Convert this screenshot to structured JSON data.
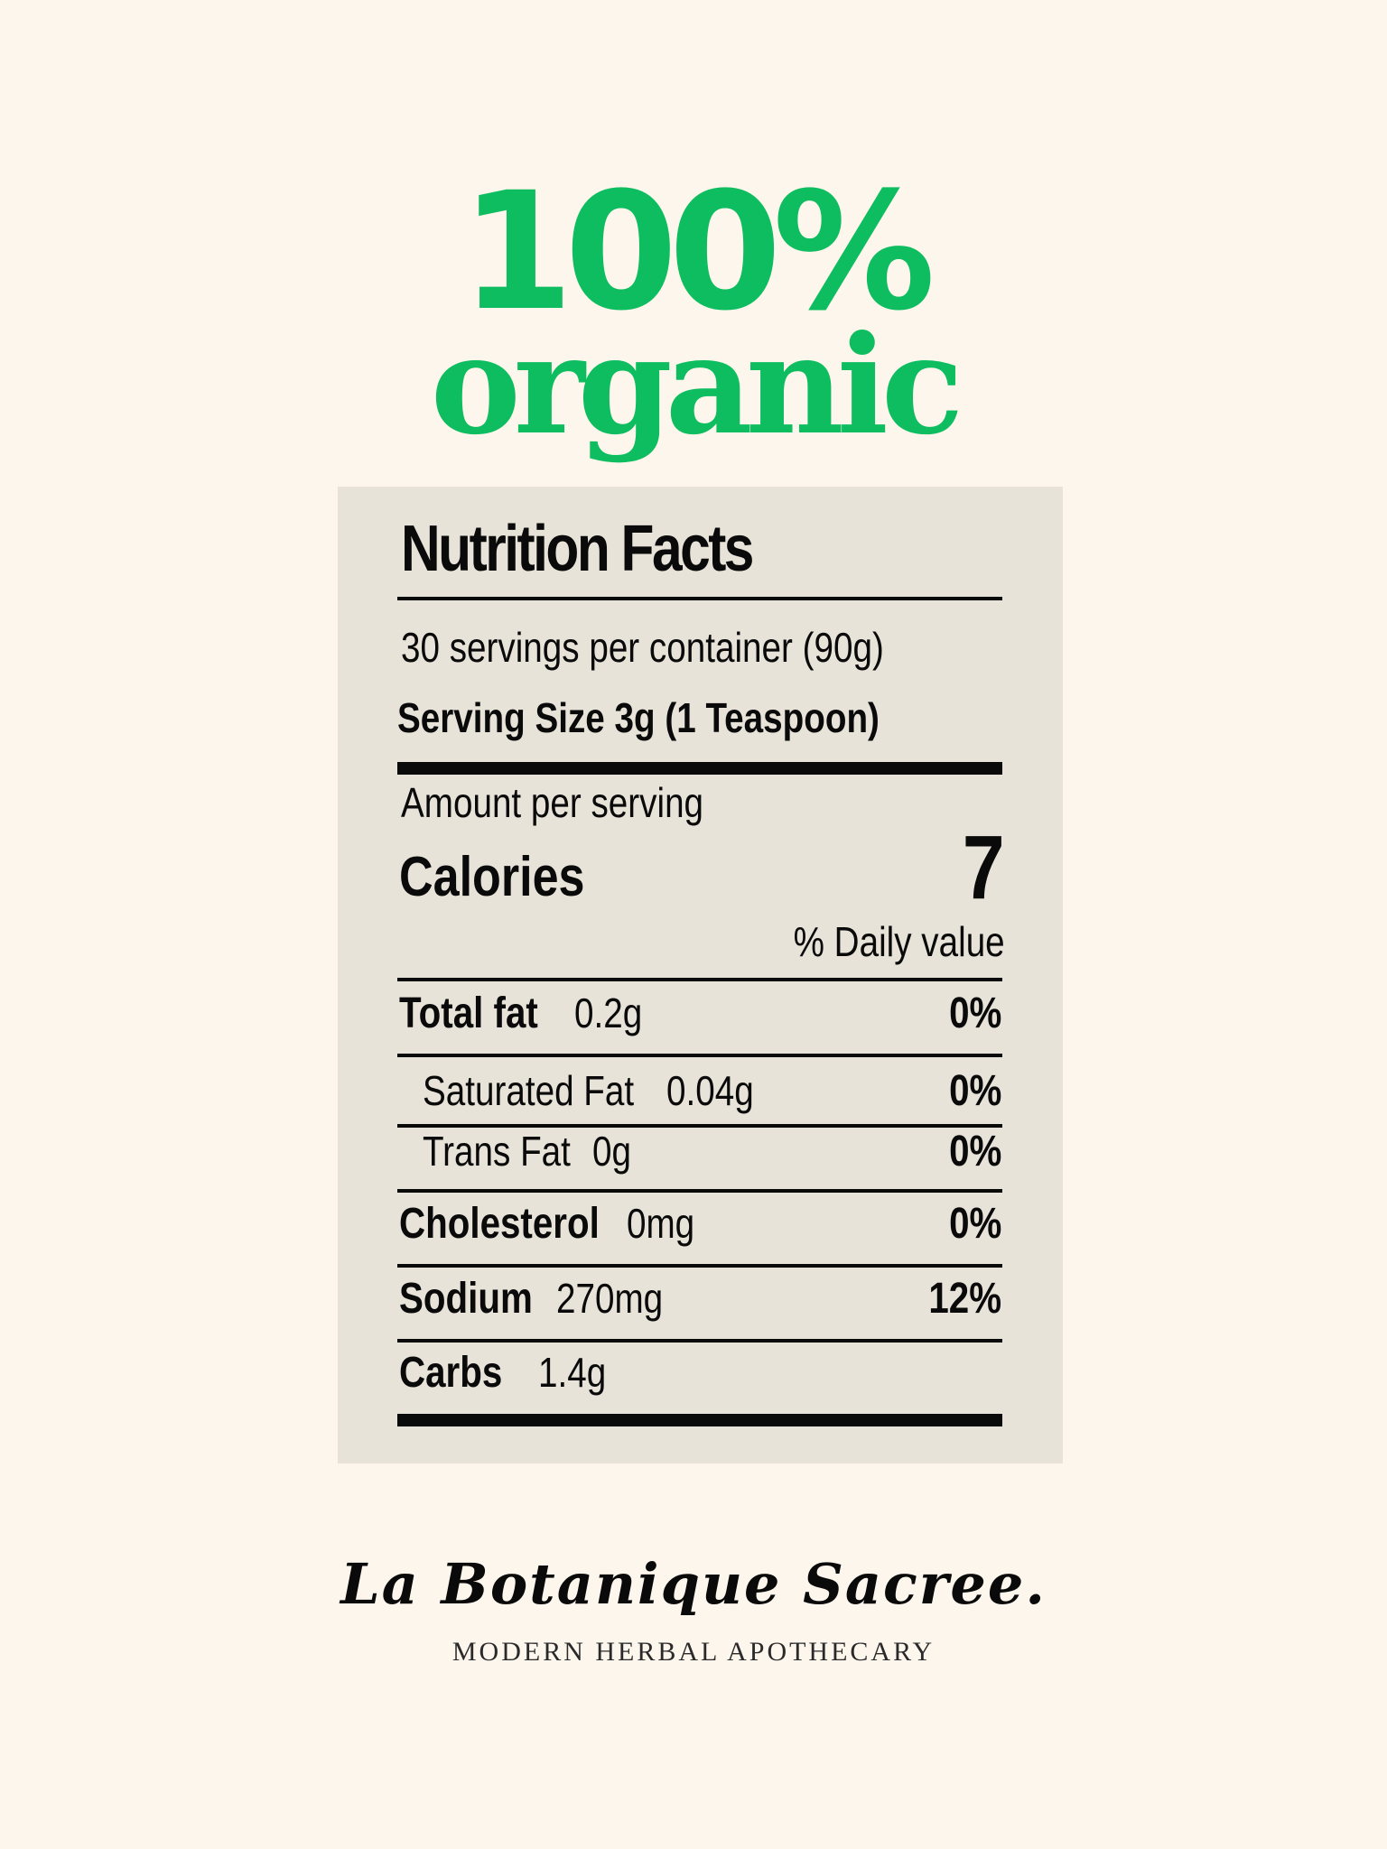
{
  "headline": {
    "line1": "100%",
    "line2": "organic",
    "color": "#0dbd5f"
  },
  "label": {
    "title": "Nutrition Facts",
    "servings": "30 servings per container (90g)",
    "serving_size": "Serving Size 3g (1 Teaspoon)",
    "amount_per_serving": "Amount per serving",
    "calories_label": "Calories",
    "calories_value": "7",
    "daily_value_header": "% Daily value",
    "nutrients": [
      {
        "name": "Total fat",
        "amount": "0.2g",
        "dv": "0%"
      },
      {
        "name": "Saturated Fat",
        "amount": "0.04g",
        "dv": "0%"
      },
      {
        "name": "Trans Fat",
        "amount": "0g",
        "dv": "0%"
      },
      {
        "name": "Cholesterol",
        "amount": "0mg",
        "dv": "0%"
      },
      {
        "name": "Sodium",
        "amount": "270mg",
        "dv": "12%"
      },
      {
        "name": "Carbs",
        "amount": "1.4g",
        "dv": ""
      }
    ]
  },
  "brand": {
    "name": "La Botanique Sacree.",
    "tagline": "MODERN HERBAL APOTHECARY"
  },
  "colors": {
    "background": "#fdf6ec",
    "panel": "#e8e3d9",
    "ink": "#0a0a0a"
  }
}
